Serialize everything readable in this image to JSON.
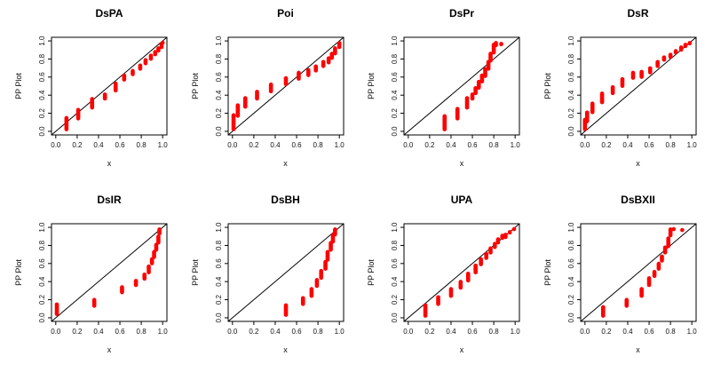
{
  "figure": {
    "background": "#ffffff",
    "axis_color": "#000000",
    "reference_line_color": "#000000",
    "segment_color": "#ff0000",
    "grid_arrangement": "2 rows x 4 columns"
  },
  "axes": {
    "x_tick_labels": [
      "0.0",
      "0.2",
      "0.4",
      "0.6",
      "0.8",
      "1.0"
    ],
    "y_tick_labels": [
      "0.0",
      "0.2",
      "0.4",
      "0.6",
      "0.8",
      "1.0"
    ]
  },
  "chart_data": [
    {
      "type": "scatter",
      "subtype": "pp-plot-vertical-segments",
      "title": "DsPA",
      "xlabel": "x",
      "ylabel": "PP Plot",
      "xlim": [
        0,
        1
      ],
      "ylim": [
        0,
        1
      ],
      "x_ticks": [
        0,
        0.2,
        0.4,
        0.6,
        0.8,
        1.0
      ],
      "y_ticks": [
        0,
        0.2,
        0.4,
        0.6,
        0.8,
        1.0
      ],
      "reference_line": "y=x",
      "grid": false,
      "segments": [
        [
          0.1,
          0.0,
          0.17
        ],
        [
          0.21,
          0.12,
          0.26
        ],
        [
          0.34,
          0.24,
          0.38
        ],
        [
          0.46,
          0.34,
          0.43
        ],
        [
          0.56,
          0.43,
          0.55
        ],
        [
          0.64,
          0.55,
          0.64
        ],
        [
          0.72,
          0.61,
          0.69
        ],
        [
          0.79,
          0.67,
          0.75
        ],
        [
          0.84,
          0.73,
          0.81
        ],
        [
          0.89,
          0.78,
          0.86
        ],
        [
          0.93,
          0.83,
          0.9
        ],
        [
          0.96,
          0.87,
          0.94
        ],
        [
          0.99,
          0.91,
          0.98
        ],
        [
          1.0,
          0.96,
          1.0
        ]
      ]
    },
    {
      "type": "scatter",
      "subtype": "pp-plot-vertical-segments",
      "title": "Poi",
      "xlabel": "x",
      "ylabel": "PP Plot",
      "xlim": [
        0,
        1
      ],
      "ylim": [
        0,
        1
      ],
      "x_ticks": [
        0,
        0.2,
        0.4,
        0.6,
        0.8,
        1.0
      ],
      "y_ticks": [
        0,
        0.2,
        0.4,
        0.6,
        0.8,
        1.0
      ],
      "reference_line": "y=x",
      "grid": false,
      "segments": [
        [
          0.01,
          0.0,
          0.2
        ],
        [
          0.05,
          0.15,
          0.31
        ],
        [
          0.12,
          0.25,
          0.39
        ],
        [
          0.23,
          0.34,
          0.46
        ],
        [
          0.36,
          0.42,
          0.54
        ],
        [
          0.5,
          0.5,
          0.61
        ],
        [
          0.62,
          0.56,
          0.67
        ],
        [
          0.71,
          0.6,
          0.7
        ],
        [
          0.78,
          0.65,
          0.74
        ],
        [
          0.85,
          0.7,
          0.79
        ],
        [
          0.9,
          0.74,
          0.83
        ],
        [
          0.93,
          0.79,
          0.88
        ],
        [
          0.96,
          0.84,
          0.94
        ],
        [
          1.0,
          0.91,
          1.0
        ]
      ]
    },
    {
      "type": "scatter",
      "subtype": "pp-plot-vertical-segments",
      "title": "DsPr",
      "xlabel": "x",
      "ylabel": "PP Plot",
      "xlim": [
        0,
        1
      ],
      "ylim": [
        0,
        1
      ],
      "x_ticks": [
        0,
        0.2,
        0.4,
        0.6,
        0.8,
        1.0
      ],
      "y_ticks": [
        0,
        0.2,
        0.4,
        0.6,
        0.8,
        1.0
      ],
      "reference_line": "y=x",
      "grid": false,
      "segments": [
        [
          0.34,
          0.0,
          0.19
        ],
        [
          0.46,
          0.12,
          0.27
        ],
        [
          0.55,
          0.24,
          0.39
        ],
        [
          0.6,
          0.34,
          0.43
        ],
        [
          0.63,
          0.4,
          0.5
        ],
        [
          0.66,
          0.46,
          0.57
        ],
        [
          0.69,
          0.53,
          0.64
        ],
        [
          0.72,
          0.59,
          0.71
        ],
        [
          0.75,
          0.67,
          0.79
        ],
        [
          0.77,
          0.76,
          0.88
        ],
        [
          0.8,
          0.85,
          0.98
        ],
        [
          0.82,
          0.93,
          1.0
        ],
        [
          0.87,
          0.94,
          0.99
        ]
      ]
    },
    {
      "type": "scatter",
      "subtype": "pp-plot-vertical-segments",
      "title": "DsR",
      "xlabel": "x",
      "ylabel": "PP Plot",
      "xlim": [
        0,
        1
      ],
      "ylim": [
        0,
        1
      ],
      "x_ticks": [
        0,
        0.2,
        0.4,
        0.6,
        0.8,
        1.0
      ],
      "y_ticks": [
        0,
        0.2,
        0.4,
        0.6,
        0.8,
        1.0
      ],
      "reference_line": "y=x",
      "grid": false,
      "segments": [
        [
          0.0,
          0.0,
          0.15
        ],
        [
          0.02,
          0.09,
          0.23
        ],
        [
          0.07,
          0.19,
          0.33
        ],
        [
          0.16,
          0.3,
          0.44
        ],
        [
          0.26,
          0.4,
          0.51
        ],
        [
          0.35,
          0.48,
          0.6
        ],
        [
          0.45,
          0.57,
          0.67
        ],
        [
          0.53,
          0.58,
          0.68
        ],
        [
          0.61,
          0.63,
          0.72
        ],
        [
          0.68,
          0.7,
          0.79
        ],
        [
          0.74,
          0.77,
          0.84
        ],
        [
          0.8,
          0.8,
          0.87
        ],
        [
          0.85,
          0.85,
          0.91
        ],
        [
          0.9,
          0.88,
          0.95
        ],
        [
          0.94,
          0.92,
          0.98
        ],
        [
          0.98,
          0.95,
          1.0
        ]
      ]
    },
    {
      "type": "scatter",
      "subtype": "pp-plot-vertical-segments",
      "title": "DsIR",
      "xlabel": "x",
      "ylabel": "PP Plot",
      "xlim": [
        0,
        1
      ],
      "ylim": [
        0,
        1
      ],
      "x_ticks": [
        0,
        0.2,
        0.4,
        0.6,
        0.8,
        1.0
      ],
      "y_ticks": [
        0,
        0.2,
        0.4,
        0.6,
        0.8,
        1.0
      ],
      "reference_line": "y=x",
      "grid": false,
      "segments": [
        [
          0.01,
          0.02,
          0.17
        ],
        [
          0.36,
          0.11,
          0.22
        ],
        [
          0.62,
          0.26,
          0.36
        ],
        [
          0.75,
          0.34,
          0.43
        ],
        [
          0.83,
          0.41,
          0.5
        ],
        [
          0.87,
          0.48,
          0.59
        ],
        [
          0.9,
          0.58,
          0.67
        ],
        [
          0.92,
          0.65,
          0.75
        ],
        [
          0.94,
          0.73,
          0.83
        ],
        [
          0.96,
          0.81,
          0.92
        ],
        [
          0.97,
          0.91,
          1.0
        ]
      ]
    },
    {
      "type": "scatter",
      "subtype": "pp-plot-vertical-segments",
      "title": "DsBH",
      "xlabel": "x",
      "ylabel": "PP Plot",
      "xlim": [
        0,
        1
      ],
      "ylim": [
        0,
        1
      ],
      "x_ticks": [
        0,
        0.2,
        0.4,
        0.6,
        0.8,
        1.0
      ],
      "y_ticks": [
        0,
        0.2,
        0.4,
        0.6,
        0.8,
        1.0
      ],
      "reference_line": "y=x",
      "grid": false,
      "segments": [
        [
          0.5,
          0.01,
          0.16
        ],
        [
          0.66,
          0.13,
          0.24
        ],
        [
          0.74,
          0.22,
          0.34
        ],
        [
          0.79,
          0.33,
          0.44
        ],
        [
          0.83,
          0.42,
          0.54
        ],
        [
          0.87,
          0.52,
          0.64
        ],
        [
          0.89,
          0.62,
          0.75
        ],
        [
          0.92,
          0.73,
          0.85
        ],
        [
          0.94,
          0.82,
          0.94
        ],
        [
          0.96,
          0.9,
          1.0
        ]
      ]
    },
    {
      "type": "scatter",
      "subtype": "pp-plot-vertical-segments",
      "title": "UPA",
      "xlabel": "x",
      "ylabel": "PP Plot",
      "xlim": [
        0,
        1
      ],
      "ylim": [
        0,
        1
      ],
      "x_ticks": [
        0,
        0.2,
        0.4,
        0.6,
        0.8,
        1.0
      ],
      "y_ticks": [
        0,
        0.2,
        0.4,
        0.6,
        0.8,
        1.0
      ],
      "reference_line": "y=x",
      "grid": false,
      "segments": [
        [
          0.16,
          0.0,
          0.16
        ],
        [
          0.28,
          0.13,
          0.25
        ],
        [
          0.4,
          0.22,
          0.34
        ],
        [
          0.49,
          0.31,
          0.42
        ],
        [
          0.56,
          0.39,
          0.51
        ],
        [
          0.63,
          0.48,
          0.6
        ],
        [
          0.68,
          0.57,
          0.67
        ],
        [
          0.73,
          0.64,
          0.73
        ],
        [
          0.77,
          0.7,
          0.79
        ],
        [
          0.81,
          0.76,
          0.84
        ],
        [
          0.84,
          0.81,
          0.89
        ],
        [
          0.88,
          0.86,
          0.93
        ],
        [
          0.91,
          0.87,
          0.94
        ],
        [
          0.95,
          0.92,
          0.97
        ],
        [
          0.99,
          0.96,
          1.0
        ]
      ]
    },
    {
      "type": "scatter",
      "subtype": "pp-plot-vertical-segments",
      "title": "DsBXII",
      "xlabel": "x",
      "ylabel": "PP Plot",
      "xlim": [
        0,
        1
      ],
      "ylim": [
        0,
        1
      ],
      "x_ticks": [
        0,
        0.2,
        0.4,
        0.6,
        0.8,
        1.0
      ],
      "y_ticks": [
        0,
        0.2,
        0.4,
        0.6,
        0.8,
        1.0
      ],
      "reference_line": "y=x",
      "grid": false,
      "segments": [
        [
          0.17,
          0.0,
          0.14
        ],
        [
          0.39,
          0.11,
          0.22
        ],
        [
          0.53,
          0.22,
          0.34
        ],
        [
          0.6,
          0.34,
          0.46
        ],
        [
          0.65,
          0.44,
          0.53
        ],
        [
          0.69,
          0.52,
          0.62
        ],
        [
          0.72,
          0.61,
          0.7
        ],
        [
          0.75,
          0.7,
          0.8
        ],
        [
          0.78,
          0.77,
          0.9
        ],
        [
          0.8,
          0.89,
          1.0
        ],
        [
          0.83,
          0.96,
          1.0
        ],
        [
          0.91,
          0.95,
          0.99
        ]
      ]
    }
  ]
}
